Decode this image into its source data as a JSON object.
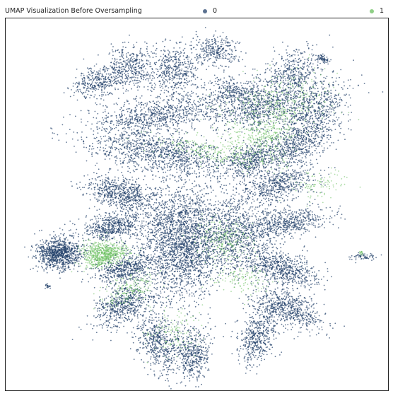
{
  "chart_data": {
    "type": "scatter",
    "title": "UMAP Visualization Before Oversampling",
    "xlabel": "",
    "ylabel": "",
    "grid": false,
    "legend": {
      "placement": "top"
    },
    "series": [
      {
        "name": "0",
        "color": "#24416b"
      },
      {
        "name": "1",
        "color": "#6abf5e"
      }
    ],
    "clusters": [
      {
        "series": "0",
        "cx": 0.83,
        "cy": 0.89,
        "rx": 0.014,
        "ry": 0.01,
        "n": 60,
        "angle": -25
      },
      {
        "series": "0",
        "cx": 0.14,
        "cy": 0.37,
        "rx": 0.05,
        "ry": 0.037,
        "n": 950,
        "angle": 0
      },
      {
        "series": "0",
        "cx": 0.11,
        "cy": 0.28,
        "rx": 0.006,
        "ry": 0.006,
        "n": 20,
        "angle": 0
      },
      {
        "series": "0",
        "cx": 0.93,
        "cy": 0.36,
        "rx": 0.028,
        "ry": 0.008,
        "n": 60,
        "angle": 0
      },
      {
        "series": "0",
        "cx": 0.46,
        "cy": 0.4,
        "rx": 0.09,
        "ry": 0.13,
        "n": 2400,
        "angle": 0
      },
      {
        "series": "0",
        "cx": 0.3,
        "cy": 0.53,
        "rx": 0.08,
        "ry": 0.035,
        "n": 650,
        "angle": -15
      },
      {
        "series": "0",
        "cx": 0.28,
        "cy": 0.44,
        "rx": 0.07,
        "ry": 0.03,
        "n": 550,
        "angle": 10
      },
      {
        "series": "0",
        "cx": 0.31,
        "cy": 0.33,
        "rx": 0.065,
        "ry": 0.03,
        "n": 500,
        "angle": 20
      },
      {
        "series": "0",
        "cx": 0.31,
        "cy": 0.23,
        "rx": 0.07,
        "ry": 0.04,
        "n": 600,
        "angle": 30
      },
      {
        "series": "0",
        "cx": 0.4,
        "cy": 0.13,
        "rx": 0.045,
        "ry": 0.075,
        "n": 550,
        "angle": 15
      },
      {
        "series": "0",
        "cx": 0.49,
        "cy": 0.1,
        "rx": 0.035,
        "ry": 0.06,
        "n": 450,
        "angle": 0
      },
      {
        "series": "0",
        "cx": 0.66,
        "cy": 0.15,
        "rx": 0.04,
        "ry": 0.07,
        "n": 500,
        "angle": -20
      },
      {
        "series": "0",
        "cx": 0.74,
        "cy": 0.22,
        "rx": 0.08,
        "ry": 0.035,
        "n": 600,
        "angle": -25
      },
      {
        "series": "0",
        "cx": 0.72,
        "cy": 0.33,
        "rx": 0.085,
        "ry": 0.035,
        "n": 650,
        "angle": -15
      },
      {
        "series": "0",
        "cx": 0.6,
        "cy": 0.42,
        "rx": 0.08,
        "ry": 0.08,
        "n": 850,
        "angle": 0
      },
      {
        "series": "0",
        "cx": 0.73,
        "cy": 0.45,
        "rx": 0.09,
        "ry": 0.03,
        "n": 550,
        "angle": 10
      },
      {
        "series": "0",
        "cx": 0.71,
        "cy": 0.55,
        "rx": 0.085,
        "ry": 0.035,
        "n": 550,
        "angle": 15
      },
      {
        "series": "0",
        "cx": 0.76,
        "cy": 0.66,
        "rx": 0.095,
        "ry": 0.045,
        "n": 650,
        "angle": 30
      },
      {
        "series": "0",
        "cx": 0.64,
        "cy": 0.62,
        "rx": 0.075,
        "ry": 0.035,
        "n": 500,
        "angle": 25
      },
      {
        "series": "0",
        "cx": 0.4,
        "cy": 0.64,
        "rx": 0.16,
        "ry": 0.045,
        "n": 1050,
        "angle": -8
      },
      {
        "series": "0",
        "cx": 0.4,
        "cy": 0.74,
        "rx": 0.15,
        "ry": 0.04,
        "n": 850,
        "angle": 8
      },
      {
        "series": "0",
        "cx": 0.67,
        "cy": 0.76,
        "rx": 0.1,
        "ry": 0.04,
        "n": 550,
        "angle": 18
      },
      {
        "series": "0",
        "cx": 0.8,
        "cy": 0.76,
        "rx": 0.09,
        "ry": 0.05,
        "n": 550,
        "angle": 30
      },
      {
        "series": "0",
        "cx": 0.75,
        "cy": 0.85,
        "rx": 0.07,
        "ry": 0.05,
        "n": 450,
        "angle": 35
      },
      {
        "series": "0",
        "cx": 0.6,
        "cy": 0.8,
        "rx": 0.07,
        "ry": 0.04,
        "n": 400,
        "angle": 0
      },
      {
        "series": "0",
        "cx": 0.44,
        "cy": 0.86,
        "rx": 0.05,
        "ry": 0.06,
        "n": 450,
        "angle": 0
      },
      {
        "series": "0",
        "cx": 0.33,
        "cy": 0.87,
        "rx": 0.05,
        "ry": 0.05,
        "n": 400,
        "angle": 10
      },
      {
        "series": "0",
        "cx": 0.24,
        "cy": 0.83,
        "rx": 0.06,
        "ry": 0.035,
        "n": 350,
        "angle": 20
      },
      {
        "series": "0",
        "cx": 0.55,
        "cy": 0.91,
        "rx": 0.05,
        "ry": 0.035,
        "n": 300,
        "angle": 0
      },
      {
        "series": "1",
        "cx": 0.26,
        "cy": 0.37,
        "rx": 0.05,
        "ry": 0.025,
        "n": 550,
        "angle": 0
      },
      {
        "series": "1",
        "cx": 0.25,
        "cy": 0.35,
        "rx": 0.04,
        "ry": 0.015,
        "n": 150,
        "angle": 20
      },
      {
        "series": "1",
        "cx": 0.32,
        "cy": 0.27,
        "rx": 0.06,
        "ry": 0.03,
        "n": 180,
        "angle": 25
      },
      {
        "series": "1",
        "cx": 0.56,
        "cy": 0.64,
        "rx": 0.15,
        "ry": 0.03,
        "n": 280,
        "angle": -10
      },
      {
        "series": "1",
        "cx": 0.7,
        "cy": 0.76,
        "rx": 0.12,
        "ry": 0.07,
        "n": 400,
        "angle": 20
      },
      {
        "series": "1",
        "cx": 0.68,
        "cy": 0.68,
        "rx": 0.06,
        "ry": 0.04,
        "n": 220,
        "angle": 10
      },
      {
        "series": "1",
        "cx": 0.57,
        "cy": 0.4,
        "rx": 0.07,
        "ry": 0.05,
        "n": 220,
        "angle": 0
      },
      {
        "series": "1",
        "cx": 0.44,
        "cy": 0.16,
        "rx": 0.06,
        "ry": 0.05,
        "n": 120,
        "angle": 15
      },
      {
        "series": "1",
        "cx": 0.62,
        "cy": 0.3,
        "rx": 0.06,
        "ry": 0.03,
        "n": 120,
        "angle": -10
      },
      {
        "series": "1",
        "cx": 0.82,
        "cy": 0.55,
        "rx": 0.06,
        "ry": 0.03,
        "n": 90,
        "angle": 15
      },
      {
        "series": "1",
        "cx": 0.93,
        "cy": 0.37,
        "rx": 0.006,
        "ry": 0.006,
        "n": 15,
        "angle": 0
      }
    ]
  }
}
